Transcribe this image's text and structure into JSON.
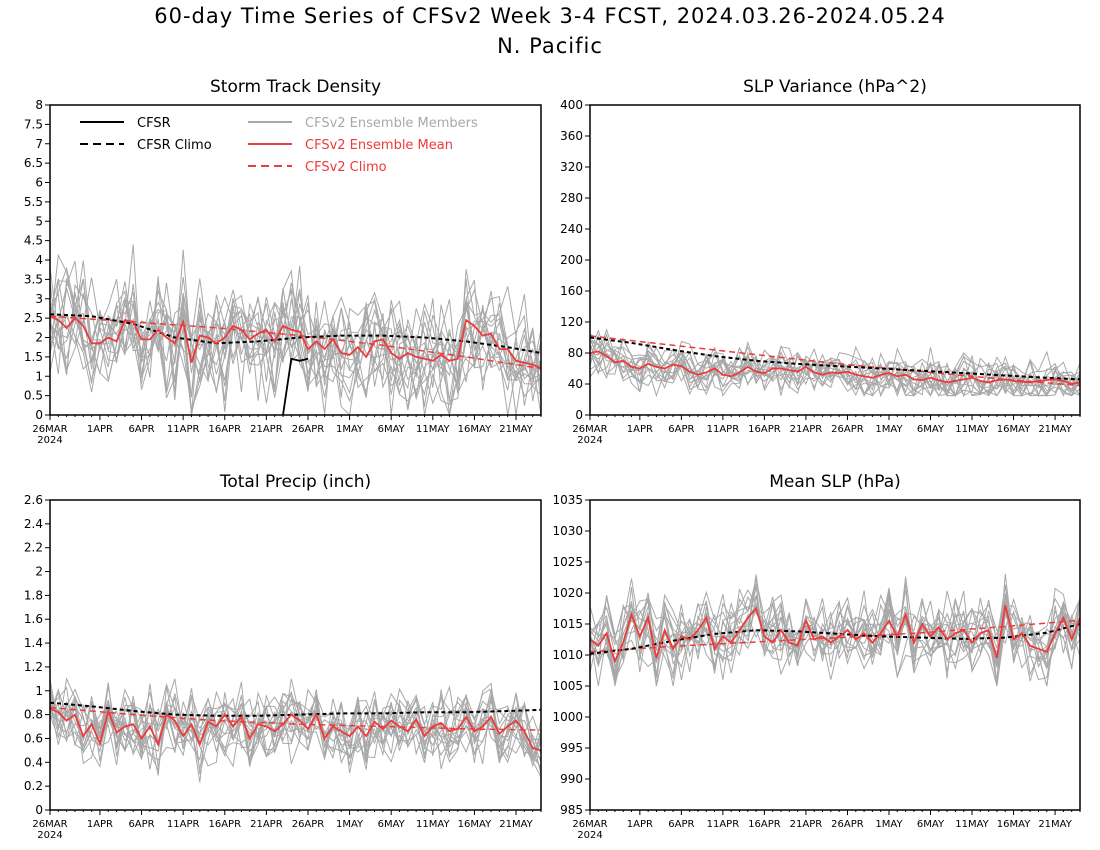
{
  "header": {
    "title": "60-day Time Series of CFSv2 Week 3-4 FCST, 2024.03.26-2024.05.24",
    "region": "N. Pacific"
  },
  "colors": {
    "obs": "#000000",
    "members": "#a8a8a8",
    "mean": "#ee3a3a",
    "model_climo": "#ee3a3a"
  },
  "legend": {
    "cfsr": "CFSR",
    "cfsr_climo": "CFSR Climo",
    "members": "CFSv2 Ensemble Members",
    "mean": "CFSv2 Ensemble Mean",
    "model_climo": "CFSv2 Climo"
  },
  "x_axis": {
    "start_date": "2024-03-26",
    "days": 60,
    "year_label": "2024",
    "tick_days": [
      0,
      6,
      11,
      16,
      21,
      26,
      31,
      36,
      41,
      46,
      51,
      56
    ],
    "tick_labels": [
      "26MAR",
      "1APR",
      "6APR",
      "11APR",
      "16APR",
      "21APR",
      "26APR",
      "1MAY",
      "6MAY",
      "11MAY",
      "16MAY",
      "21MAY"
    ]
  },
  "chart_data": [
    {
      "type": "line",
      "title": "Storm Track Density",
      "ylim": [
        0,
        8
      ],
      "yticks": [
        0,
        0.5,
        1,
        1.5,
        2,
        2.5,
        3,
        3.5,
        4,
        4.5,
        5,
        5.5,
        6,
        6.5,
        7,
        7.5,
        8
      ],
      "yticklabels": [
        "0",
        "0.5",
        "1",
        "1.5",
        "2",
        "2.5",
        "3",
        "3.5",
        "4",
        "4.5",
        "5",
        "5.5",
        "6",
        "6.5",
        "7",
        "7.5",
        "8"
      ],
      "cfsr": {
        "x": [
          28,
          29,
          30,
          31
        ],
        "y": [
          0,
          1.45,
          1.4,
          1.45
        ]
      },
      "cfsr_climo": {
        "x": [
          0,
          5,
          10,
          15,
          20,
          25,
          30,
          35,
          40,
          45,
          50,
          55,
          59
        ],
        "y": [
          2.6,
          2.55,
          2.35,
          2.0,
          1.85,
          1.9,
          2.0,
          2.05,
          2.05,
          2.0,
          1.9,
          1.75,
          1.6
        ]
      },
      "ensemble_mean": {
        "x": [
          0,
          1,
          2,
          3,
          4,
          5,
          6,
          7,
          8,
          9,
          10,
          11,
          12,
          13,
          14,
          15,
          16,
          17,
          18,
          19,
          20,
          21,
          22,
          23,
          24,
          25,
          26,
          27,
          28,
          29,
          30,
          31,
          32,
          33,
          34,
          35,
          36,
          37,
          38,
          39,
          40,
          41,
          42,
          43,
          44,
          45,
          46,
          47,
          48,
          49,
          50,
          51,
          52,
          53,
          54,
          55,
          56,
          57,
          58,
          59
        ],
        "y": [
          2.55,
          2.45,
          2.25,
          2.5,
          2.3,
          1.85,
          1.85,
          2.0,
          1.9,
          2.45,
          2.4,
          1.95,
          1.95,
          2.2,
          2.0,
          1.85,
          2.4,
          1.35,
          2.05,
          2.0,
          1.85,
          2.0,
          2.3,
          2.2,
          1.95,
          2.1,
          2.2,
          1.9,
          2.3,
          2.2,
          2.15,
          1.7,
          1.9,
          1.7,
          1.95,
          1.6,
          1.55,
          1.75,
          1.5,
          1.9,
          1.95,
          1.6,
          1.45,
          1.6,
          1.5,
          1.45,
          1.4,
          1.55,
          1.4,
          1.45,
          2.45,
          2.3,
          2.05,
          2.1,
          1.7,
          1.7,
          1.4,
          1.35,
          1.3,
          1.2
        ]
      },
      "model_climo": {
        "x": [
          0,
          10,
          20,
          30,
          40,
          50,
          59
        ],
        "y": [
          2.55,
          2.4,
          2.25,
          2.05,
          1.8,
          1.5,
          1.2
        ]
      },
      "members": {
        "count": 16,
        "base": "ensemble_mean",
        "spread": 0.9,
        "lo": 0,
        "hi": 4.4
      }
    },
    {
      "type": "line",
      "title": "SLP Variance (hPa^2)",
      "ylim": [
        0,
        400
      ],
      "yticks": [
        0,
        40,
        80,
        120,
        160,
        200,
        240,
        280,
        320,
        360,
        400
      ],
      "yticklabels": [
        "0",
        "40",
        "80",
        "120",
        "160",
        "200",
        "240",
        "280",
        "320",
        "360",
        "400"
      ],
      "cfsr_climo": {
        "x": [
          0,
          5,
          10,
          15,
          20,
          25,
          30,
          35,
          40,
          45,
          50,
          55,
          59
        ],
        "y": [
          100,
          93,
          84,
          76,
          70,
          66,
          63,
          60,
          57,
          54,
          51,
          48,
          46
        ]
      },
      "ensemble_mean": {
        "x": [
          0,
          1,
          2,
          3,
          4,
          5,
          6,
          7,
          8,
          9,
          10,
          11,
          12,
          13,
          14,
          15,
          16,
          17,
          18,
          19,
          20,
          21,
          22,
          23,
          24,
          25,
          26,
          27,
          28,
          29,
          30,
          31,
          32,
          33,
          34,
          35,
          36,
          37,
          38,
          39,
          40,
          41,
          42,
          43,
          44,
          45,
          46,
          47,
          48,
          49,
          50,
          51,
          52,
          53,
          54,
          55,
          56,
          57,
          58,
          59
        ],
        "y": [
          80,
          82,
          76,
          68,
          70,
          62,
          60,
          66,
          62,
          60,
          65,
          63,
          56,
          52,
          55,
          60,
          52,
          50,
          55,
          62,
          56,
          54,
          60,
          60,
          58,
          56,
          62,
          55,
          52,
          55,
          54,
          56,
          52,
          50,
          48,
          52,
          54,
          50,
          52,
          46,
          45,
          48,
          45,
          42,
          44,
          46,
          48,
          44,
          42,
          45,
          46,
          44,
          43,
          42,
          44,
          45,
          46,
          44,
          40,
          42
        ]
      },
      "model_climo": {
        "x": [
          0,
          10,
          20,
          30,
          40,
          50,
          59
        ],
        "y": [
          102,
          90,
          78,
          66,
          56,
          46,
          38
        ]
      },
      "members": {
        "count": 16,
        "base": "ensemble_mean",
        "spread": 18,
        "lo": 25,
        "hi": 120
      }
    },
    {
      "type": "line",
      "title": "Total Precip (inch)",
      "ylim": [
        0,
        2.6
      ],
      "yticks": [
        0,
        0.2,
        0.4,
        0.6,
        0.8,
        1,
        1.2,
        1.4,
        1.6,
        1.8,
        2,
        2.2,
        2.4,
        2.6
      ],
      "yticklabels": [
        "0",
        "0.2",
        "0.4",
        "0.6",
        "0.8",
        "1",
        "1.2",
        "1.4",
        "1.6",
        "1.8",
        "2",
        "2.2",
        "2.4",
        "2.6"
      ],
      "cfsr_climo": {
        "x": [
          0,
          5,
          10,
          15,
          20,
          25,
          30,
          35,
          40,
          45,
          50,
          55,
          59
        ],
        "y": [
          0.9,
          0.87,
          0.83,
          0.8,
          0.79,
          0.79,
          0.8,
          0.81,
          0.81,
          0.82,
          0.82,
          0.83,
          0.84
        ]
      },
      "ensemble_mean": {
        "x": [
          0,
          1,
          2,
          3,
          4,
          5,
          6,
          7,
          8,
          9,
          10,
          11,
          12,
          13,
          14,
          15,
          16,
          17,
          18,
          19,
          20,
          21,
          22,
          23,
          24,
          25,
          26,
          27,
          28,
          29,
          30,
          31,
          32,
          33,
          34,
          35,
          36,
          37,
          38,
          39,
          40,
          41,
          42,
          43,
          44,
          45,
          46,
          47,
          48,
          49,
          50,
          51,
          52,
          53,
          54,
          55,
          56,
          57,
          58,
          59
        ],
        "y": [
          0.85,
          0.82,
          0.75,
          0.8,
          0.62,
          0.72,
          0.56,
          0.83,
          0.65,
          0.7,
          0.72,
          0.6,
          0.7,
          0.55,
          0.8,
          0.75,
          0.62,
          0.72,
          0.55,
          0.74,
          0.7,
          0.8,
          0.7,
          0.78,
          0.6,
          0.72,
          0.7,
          0.66,
          0.72,
          0.8,
          0.75,
          0.68,
          0.8,
          0.6,
          0.7,
          0.66,
          0.62,
          0.7,
          0.62,
          0.74,
          0.68,
          0.75,
          0.7,
          0.66,
          0.76,
          0.62,
          0.7,
          0.73,
          0.66,
          0.68,
          0.78,
          0.66,
          0.7,
          0.78,
          0.64,
          0.7,
          0.75,
          0.66,
          0.52,
          0.5
        ]
      },
      "model_climo": {
        "x": [
          0,
          10,
          20,
          30,
          40,
          50,
          59
        ],
        "y": [
          0.86,
          0.8,
          0.75,
          0.72,
          0.7,
          0.68,
          0.67
        ]
      },
      "members": {
        "count": 16,
        "base": "ensemble_mean",
        "spread": 0.18,
        "lo": 0.2,
        "hi": 1.1
      }
    },
    {
      "type": "line",
      "title": "Mean SLP (hPa)",
      "ylim": [
        985,
        1035
      ],
      "yticks": [
        985,
        990,
        995,
        1000,
        1005,
        1010,
        1015,
        1020,
        1025,
        1030,
        1035
      ],
      "yticklabels": [
        "985",
        "990",
        "995",
        "1000",
        "1005",
        "1010",
        "1015",
        "1020",
        "1025",
        "1030",
        "1035"
      ],
      "cfsr_climo": {
        "x": [
          0,
          5,
          10,
          15,
          20,
          25,
          30,
          35,
          40,
          45,
          50,
          55,
          59
        ],
        "y": [
          1010.2,
          1011,
          1012.3,
          1013.4,
          1014,
          1013.8,
          1013.4,
          1013,
          1012.8,
          1012.6,
          1012.8,
          1013.6,
          1015
        ]
      },
      "ensemble_mean": {
        "x": [
          0,
          1,
          2,
          3,
          4,
          5,
          6,
          7,
          8,
          9,
          10,
          11,
          12,
          13,
          14,
          15,
          16,
          17,
          18,
          19,
          20,
          21,
          22,
          23,
          24,
          25,
          26,
          27,
          28,
          29,
          30,
          31,
          32,
          33,
          34,
          35,
          36,
          37,
          38,
          39,
          40,
          41,
          42,
          43,
          44,
          45,
          46,
          47,
          48,
          49,
          50,
          51,
          52,
          53,
          54,
          55,
          56,
          57,
          58,
          59
        ],
        "y": [
          1012.5,
          1011.5,
          1013.5,
          1009,
          1012,
          1016.5,
          1013,
          1016,
          1009.5,
          1014,
          1011,
          1013,
          1012.5,
          1014,
          1016,
          1011,
          1013,
          1012,
          1014,
          1016,
          1017.5,
          1013,
          1012,
          1014,
          1012,
          1011.5,
          1015.5,
          1012.5,
          1013,
          1012,
          1013,
          1014,
          1012.5,
          1013.5,
          1012,
          1013.5,
          1015.5,
          1013,
          1016.5,
          1012,
          1015,
          1013,
          1014.5,
          1012.5,
          1013.5,
          1014,
          1012,
          1013.5,
          1014,
          1009.5,
          1018,
          1012.5,
          1013.5,
          1011.5,
          1011,
          1010.5,
          1013.5,
          1016,
          1012.5,
          1016
        ]
      },
      "model_climo": {
        "x": [
          0,
          10,
          20,
          30,
          40,
          50,
          59
        ],
        "y": [
          1010.5,
          1011.4,
          1012.1,
          1012.8,
          1013.6,
          1014.6,
          1015.6
        ]
      },
      "members": {
        "count": 16,
        "base": "ensemble_mean",
        "spread": 3.6,
        "lo": 1005,
        "hi": 1025
      }
    }
  ]
}
